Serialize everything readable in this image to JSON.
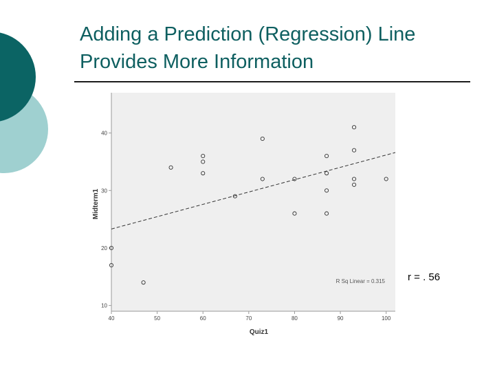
{
  "slide": {
    "title_line_1": "Adding a Prediction (Regression) Line",
    "title_line_2": "Provides More Information",
    "correlation_label": "r = . 56"
  },
  "colors": {
    "title": "#0e5f60",
    "accent_dark": "#0b6464",
    "accent_light": "#9fd0d0",
    "plot_background": "#efefef"
  },
  "chart_data": {
    "type": "scatter",
    "xlabel": "Quiz1",
    "ylabel": "Midterm1",
    "xlim": [
      40,
      102
    ],
    "ylim": [
      9,
      47
    ],
    "xticks": [
      "40",
      "50",
      "60",
      "70",
      "80",
      "90",
      "100"
    ],
    "yticks": [
      "10",
      "20",
      "30",
      "40"
    ],
    "grid": false,
    "points": [
      {
        "x": 40,
        "y": 20
      },
      {
        "x": 40,
        "y": 17
      },
      {
        "x": 47,
        "y": 14
      },
      {
        "x": 53,
        "y": 34
      },
      {
        "x": 60,
        "y": 36
      },
      {
        "x": 60,
        "y": 35
      },
      {
        "x": 60,
        "y": 33
      },
      {
        "x": 67,
        "y": 29
      },
      {
        "x": 73,
        "y": 39
      },
      {
        "x": 73,
        "y": 32
      },
      {
        "x": 80,
        "y": 32
      },
      {
        "x": 80,
        "y": 26
      },
      {
        "x": 87,
        "y": 36
      },
      {
        "x": 87,
        "y": 33
      },
      {
        "x": 87,
        "y": 30
      },
      {
        "x": 87,
        "y": 26
      },
      {
        "x": 93,
        "y": 41
      },
      {
        "x": 93,
        "y": 37
      },
      {
        "x": 93,
        "y": 32
      },
      {
        "x": 93,
        "y": 31
      },
      {
        "x": 100,
        "y": 32
      }
    ],
    "fit_line": {
      "x": [
        40,
        102
      ],
      "y": [
        23.3,
        36.6
      ]
    },
    "annotation": "R Sq Linear = 0.315"
  }
}
